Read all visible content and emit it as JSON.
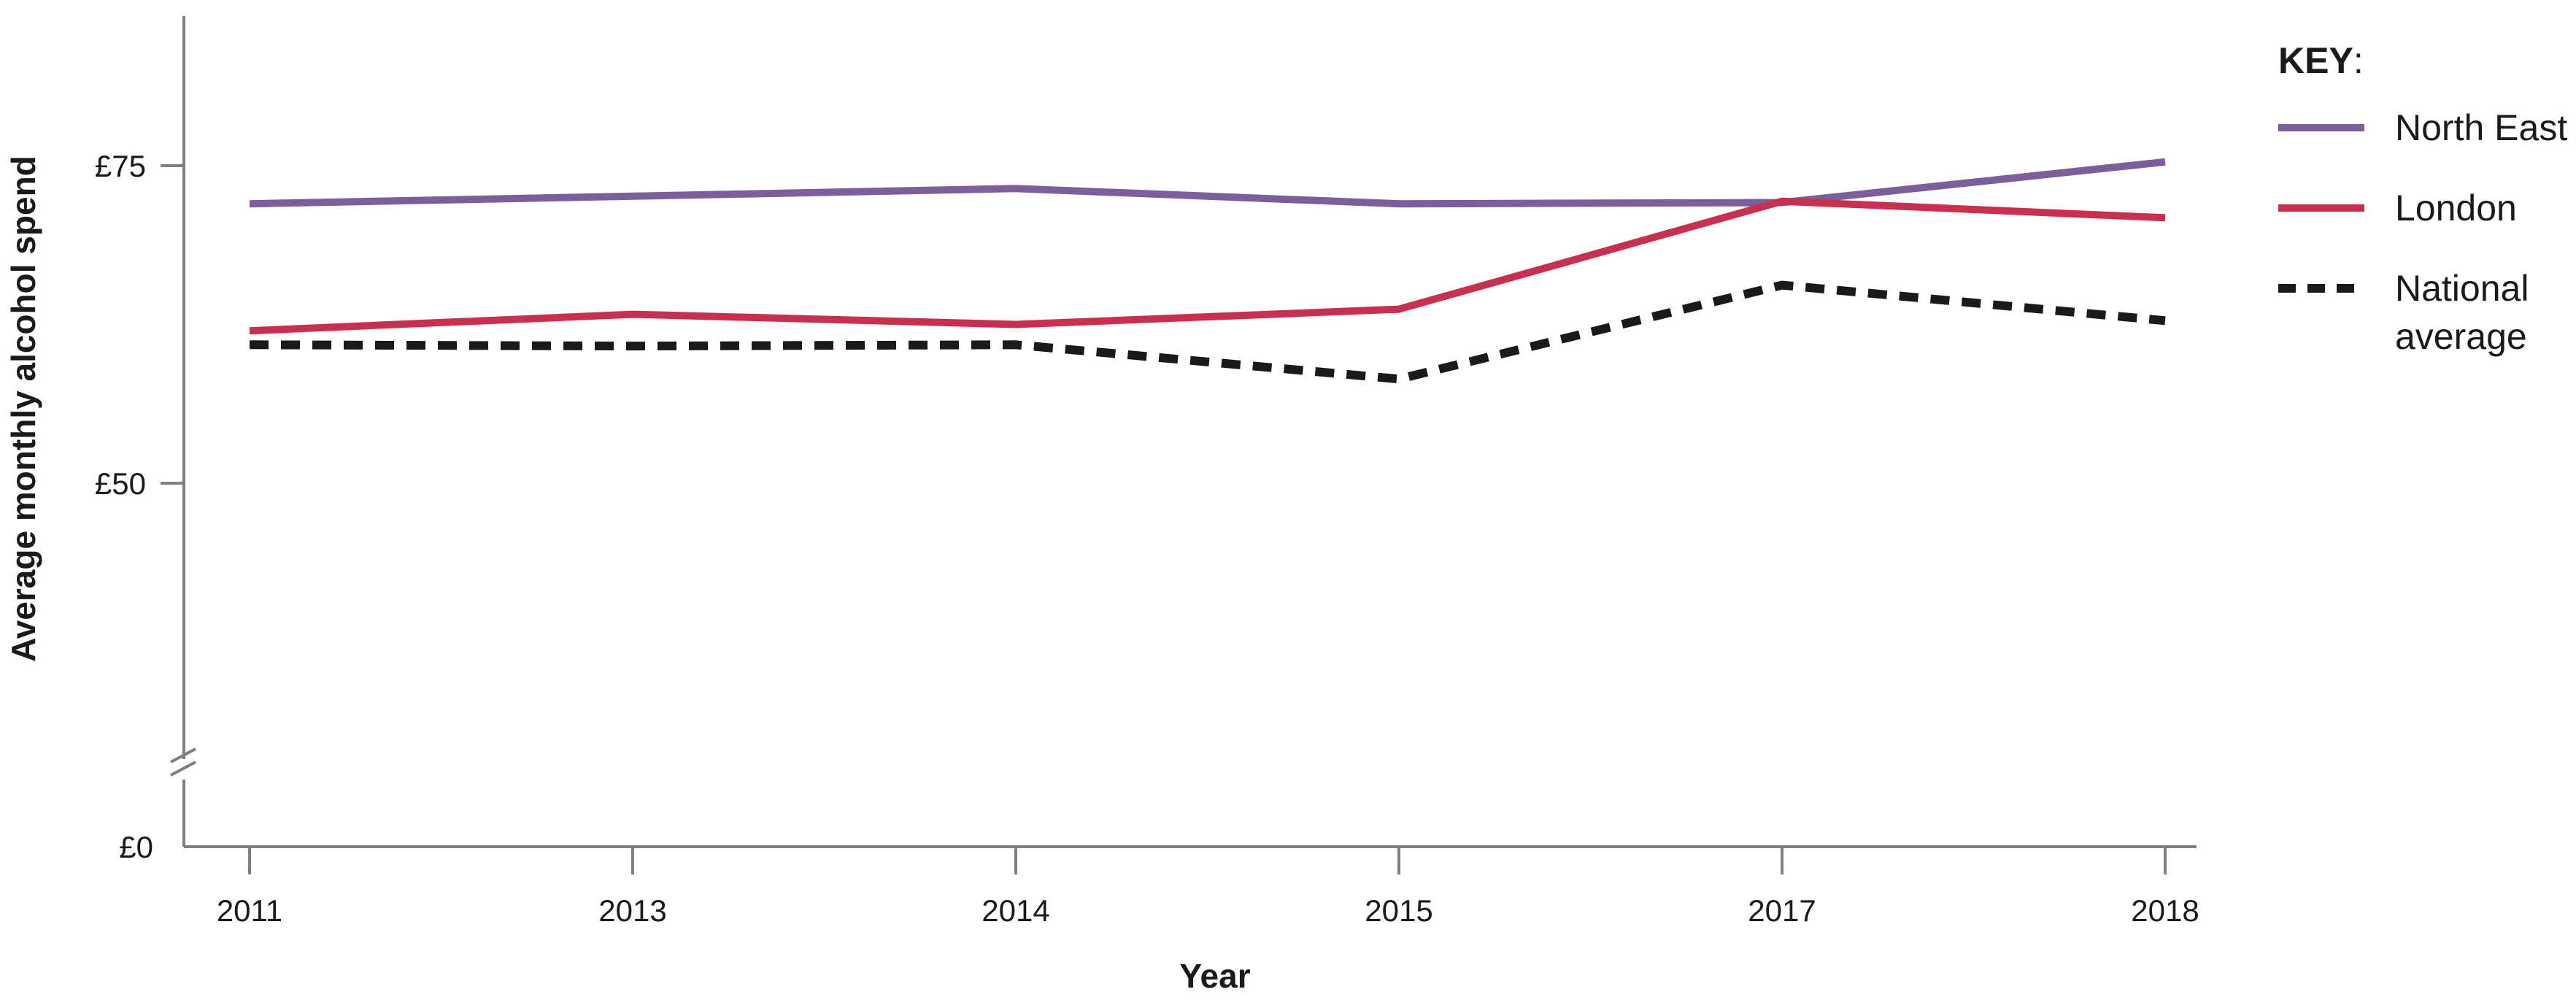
{
  "chart_data": {
    "type": "line",
    "x": [
      "2011",
      "2013",
      "2014",
      "2015",
      "2017",
      "2018"
    ],
    "xlabel": "Year",
    "ylabel": "Average monthly alcohol spend",
    "yticks": [
      "£0",
      "£50",
      "£75"
    ],
    "ylim": [
      0,
      85
    ],
    "y_axis_break": true,
    "grid": false,
    "legend_title": "KEY",
    "legend_title_suffix": ":",
    "legend_position": "right",
    "series": [
      {
        "name": "North East",
        "color": "#7b5e9a",
        "style": "solid",
        "values": [
          72.0,
          72.6,
          73.2,
          72.0,
          72.1,
          75.3
        ]
      },
      {
        "name": "London",
        "color": "#c8304f",
        "style": "solid",
        "values": [
          62.0,
          63.3,
          62.5,
          63.7,
          72.2,
          70.9
        ]
      },
      {
        "name": "National average",
        "name_lines": [
          "National",
          "average"
        ],
        "color": "#1a1a1a",
        "style": "dashed",
        "values": [
          60.9,
          60.8,
          60.9,
          58.2,
          65.6,
          62.8
        ]
      }
    ]
  }
}
